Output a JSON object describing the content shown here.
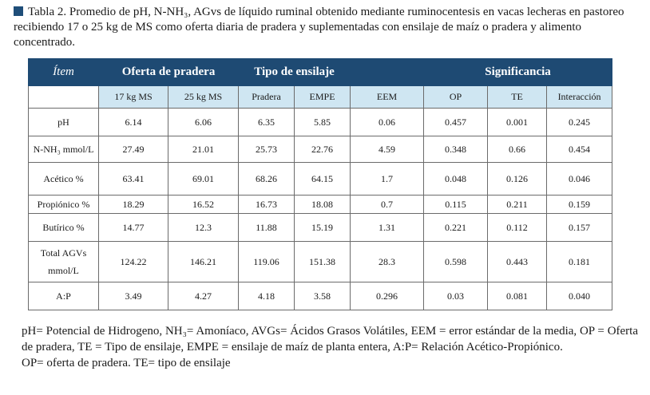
{
  "caption": "Tabla 2. Promedio de pH, N-NH₃, AGvs de líquido ruminal obtenido mediante ruminocentesis en vacas lecheras en pastoreo recibiendo 17 o 25 kg de MS como oferta diaria de pradera y suplementadas con ensilaje de maíz o pradera y alimento concentrado.",
  "table": {
    "header_top": {
      "item": "Ítem",
      "oferta": "Oferta de pradera",
      "tipo": "Tipo de ensilaje",
      "significancia": "Significancia"
    },
    "header_sub": [
      "17 kg MS",
      "25 kg MS",
      "Pradera",
      "EMPE",
      "EEM",
      "OP",
      "TE",
      "Interacción"
    ],
    "rows": [
      {
        "label": "pH",
        "values": [
          "6.14",
          "6.06",
          "6.35",
          "5.85",
          "0.06",
          "0.457",
          "0.001",
          "0.245"
        ]
      },
      {
        "label": "N-NH₃ mmol/L",
        "values": [
          "27.49",
          "21.01",
          "25.73",
          "22.76",
          "4.59",
          "0.348",
          "0.66",
          "0.454"
        ]
      },
      {
        "label": "Acético %",
        "values": [
          "63.41",
          "69.01",
          "68.26",
          "64.15",
          "1.7",
          "0.048",
          "0.126",
          "0.046"
        ]
      },
      {
        "label": "Propiónico %",
        "values": [
          "18.29",
          "16.52",
          "16.73",
          "18.08",
          "0.7",
          "0.115",
          "0.211",
          "0.159"
        ]
      },
      {
        "label": "Butírico %",
        "values": [
          "14.77",
          "12.3",
          "11.88",
          "15.19",
          "1.31",
          "0.221",
          "0.112",
          "0.157"
        ]
      },
      {
        "label_line1": "Total AGVs",
        "label_line2": "mmol/L",
        "values": [
          "124.22",
          "146.21",
          "119.06",
          "151.38",
          "28.3",
          "0.598",
          "0.443",
          "0.181"
        ]
      },
      {
        "label": "A:P",
        "values": [
          "3.49",
          "4.27",
          "4.18",
          "3.58",
          "0.296",
          "0.03",
          "0.081",
          "0.040"
        ]
      }
    ]
  },
  "footnote": {
    "line1": "pH= Potencial de Hidrogeno, NH₃= Amoníaco, AVGs= Ácidos Grasos Volátiles, EEM = error estándar de la media, OP = Oferta de pradera, TE = Tipo de ensilaje, EMPE = ensilaje de maíz de planta entera, A:P= Relación Acético-Propiónico.",
    "line2": "OP= oferta de pradera. TE= tipo de ensilaje"
  },
  "colors": {
    "header_bg": "#1e4a73",
    "subheader_bg": "#cfe6f2",
    "marker": "#1f4e79"
  }
}
